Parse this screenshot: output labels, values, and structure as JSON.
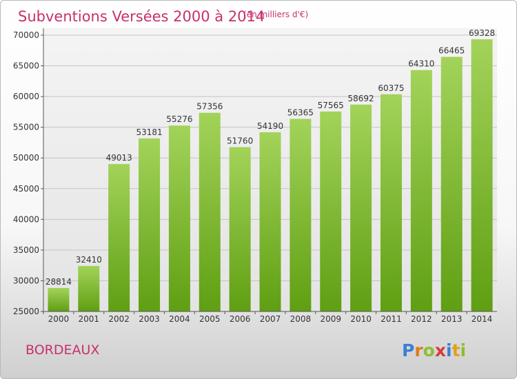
{
  "chart_data": {
    "type": "bar",
    "title": "Subventions Versées 2000 à 2014",
    "subtitle": "(en milliers d'€)",
    "categories": [
      "2000",
      "2001",
      "2002",
      "2003",
      "2004",
      "2005",
      "2006",
      "2007",
      "2008",
      "2009",
      "2010",
      "2011",
      "2012",
      "2013",
      "2014"
    ],
    "values": [
      28814,
      32410,
      49013,
      53181,
      55276,
      57356,
      51760,
      54190,
      56365,
      57565,
      58692,
      60375,
      64310,
      66465,
      69328
    ],
    "data_labels": [
      "28814",
      "32410",
      "49013",
      "53181",
      "55276",
      "57356",
      "51760",
      "54190",
      "56365",
      "57565",
      "58692",
      "60375",
      "64310",
      "66465",
      "69328"
    ],
    "ylim": [
      25000,
      70000
    ],
    "yticks": [
      "25000",
      "30000",
      "35000",
      "40000",
      "45000",
      "50000",
      "55000",
      "60000",
      "65000",
      "70000"
    ],
    "grid": true,
    "bar_color": "#7fbf3a"
  },
  "place_name": "BORDEAUX",
  "logo": {
    "letters": [
      "P",
      "r",
      "o",
      "x",
      "i",
      "t",
      "i"
    ],
    "colors": [
      "#3a7fd5",
      "#e07a1a",
      "#8bbf2f",
      "#d63b3b",
      "#3a7fd5",
      "#e0a21a",
      "#8bbf2f"
    ]
  }
}
